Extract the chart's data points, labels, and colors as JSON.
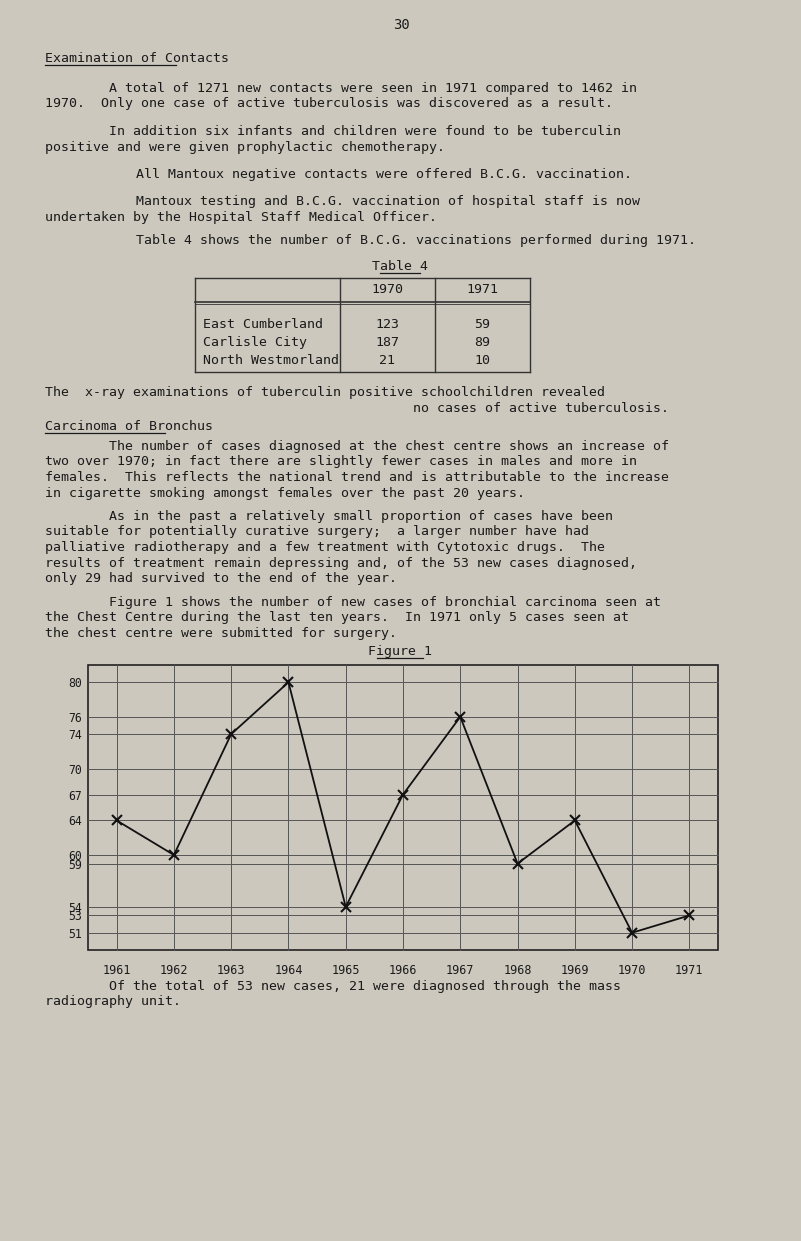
{
  "bg_color": "#ccc8be",
  "text_color": "#1a1a1a",
  "page_number": "30",
  "section1_title": "Examination of Contacts",
  "para1_l1": "        A total of 1271 new contacts were seen in 1971 compared to 1462 in",
  "para1_l2": "1970.  Only one case of active tuberculosis was discovered as a result.",
  "para2_l1": "        In addition six infants and children were found to be tuberculin",
  "para2_l2": "positive and were given prophylactic chemotherapy.",
  "para3": "        All Mantoux negative contacts were offered B.C.G. vaccination.",
  "para4_l1": "        Mantoux testing and B.C.G. vaccination of hospital staff is now",
  "para4_l2": "undertaken by the Hospital Staff Medical Officer.",
  "para5": "        Table 4 shows the number of B.C.G. vaccinations performed during 1971.",
  "table_title": "Table 4",
  "table_rows": [
    "East Cumberland",
    "Carlisle City",
    "North Westmorland"
  ],
  "table_1970": [
    123,
    187,
    21
  ],
  "table_1971": [
    59,
    89,
    10
  ],
  "para6_l1": "The  x-ray examinations of tuberculin positive schoolchildren revealed",
  "para6_l2": "                                              no cases of active tuberculosis.",
  "section2_title": "Carcinoma of Bronchus",
  "para7_l1": "        The number of cases diagnosed at the chest centre shows an increase of",
  "para7_l2": "two over 1970; in fact there are slightly fewer cases in males and more in",
  "para7_l3": "females.  This reflects the national trend and is attributable to the increase",
  "para7_l4": "in cigarette smoking amongst females over the past 20 years.",
  "para8_l1": "        As in the past a relatively small proportion of cases have been",
  "para8_l2": "suitable for potentially curative surgery;  a larger number have had",
  "para8_l3": "palliative radiotherapy and a few treatment with Cytotoxic drugs.  The",
  "para8_l4": "results of treatment remain depressing and, of the 53 new cases diagnosed,",
  "para8_l5": "only 29 had survived to the end of the year.",
  "para9_l1": "        Figure 1 shows the number of new cases of bronchial carcinoma seen at",
  "para9_l2": "the Chest Centre during the last ten years.  In 1971 only 5 cases seen at",
  "para9_l3": "the chest centre were submitted for surgery.",
  "figure_title": "Figure 1",
  "years": [
    1961,
    1962,
    1963,
    1964,
    1965,
    1966,
    1967,
    1968,
    1969,
    1970,
    1971
  ],
  "values": [
    64,
    60,
    74,
    80,
    54,
    67,
    76,
    59,
    64,
    51,
    53
  ],
  "yticks": [
    51,
    53,
    54,
    59,
    60,
    64,
    67,
    70,
    74,
    76,
    80
  ],
  "ylim_lo": 49,
  "ylim_hi": 82,
  "para10_l1": "        Of the total of 53 new cases, 21 were diagnosed through the mass",
  "para10_l2": "radiography unit."
}
